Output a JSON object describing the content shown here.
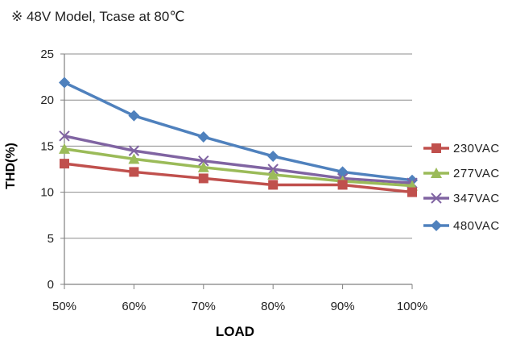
{
  "chart_data": {
    "type": "line",
    "title": "※ 48V Model, Tcase at 80℃",
    "xlabel": "LOAD",
    "ylabel": "THD(%)",
    "categories": [
      "50%",
      "60%",
      "70%",
      "80%",
      "90%",
      "100%"
    ],
    "ylim": [
      0,
      25
    ],
    "yticks": [
      0,
      5,
      10,
      15,
      20,
      25
    ],
    "grid": true,
    "legend_position": "right",
    "series": [
      {
        "name": "230VAC",
        "color": "#c0504d",
        "marker": "square",
        "values": [
          13.1,
          12.2,
          11.5,
          10.8,
          10.8,
          10.0
        ]
      },
      {
        "name": "277VAC",
        "color": "#9bbb59",
        "marker": "triangle",
        "values": [
          14.7,
          13.6,
          12.7,
          11.9,
          11.2,
          10.7
        ]
      },
      {
        "name": "347VAC",
        "color": "#8064a2",
        "marker": "x",
        "values": [
          16.1,
          14.5,
          13.4,
          12.5,
          11.5,
          11.0
        ]
      },
      {
        "name": "480VAC",
        "color": "#4f81bd",
        "marker": "diamond",
        "values": [
          21.9,
          18.3,
          16.0,
          13.9,
          12.2,
          11.3
        ]
      }
    ]
  }
}
